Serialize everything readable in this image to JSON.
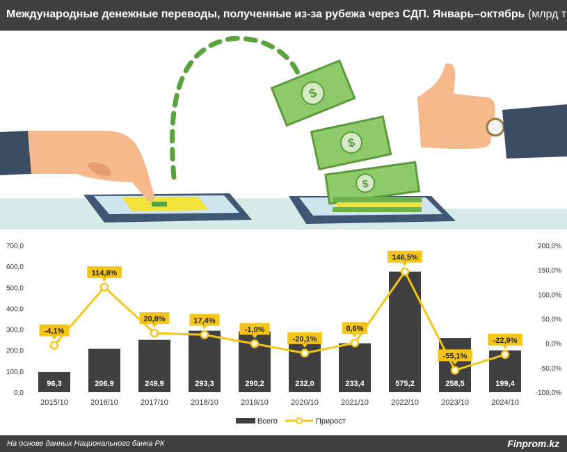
{
  "header": {
    "title": "Международные денежные переводы, полученные из-за рубежа через СДП. Январь–октябрь",
    "unit": "(млрд тг)"
  },
  "footer": {
    "source": "На основе данных Национального банка РК",
    "brand": "Finprom.kz"
  },
  "colors": {
    "bar": "#404040",
    "line": "#f5c518",
    "bar_label": "#ffffff",
    "callout_bg": "#f5c518"
  },
  "illustration": {
    "icons": [
      "pointing-hand-icon",
      "smartphone-icon",
      "money-bills-icon",
      "thumbs-up-hand-icon",
      "dashed-arc-arrow-icon"
    ]
  },
  "chart_data": {
    "type": "bar",
    "categories": [
      "2015/10",
      "2016/10",
      "2017/10",
      "2018/10",
      "2019/10",
      "2020/10",
      "2021/10",
      "2022/10",
      "2023/10",
      "2024/10"
    ],
    "series": [
      {
        "name": "Всего",
        "type": "bar",
        "axis": "left",
        "values": [
          96.3,
          206.9,
          249.9,
          293.3,
          290.2,
          232.0,
          233.4,
          575.2,
          258.5,
          199.4
        ],
        "labels": [
          "96,3",
          "206,9",
          "249,9",
          "293,3",
          "290,2",
          "232,0",
          "233,4",
          "575,2",
          "258,5",
          "199,4"
        ]
      },
      {
        "name": "Прирост",
        "type": "line",
        "axis": "right",
        "values": [
          -4.1,
          114.8,
          20.8,
          17.4,
          -1.0,
          -20.1,
          0.6,
          146.5,
          -55.1,
          -22.9
        ],
        "labels": [
          "-4,1%",
          "114,8%",
          "20,8%",
          "17,4%",
          "-1,0%",
          "-20,1%",
          "0,6%",
          "146,5%",
          "-55,1%",
          "-22,9%"
        ]
      }
    ],
    "y_left": {
      "ylim": [
        0,
        700
      ],
      "ticks": [
        "0,0",
        "100,0",
        "200,0",
        "300,0",
        "400,0",
        "500,0",
        "600,0",
        "700,0"
      ]
    },
    "y_right": {
      "ylim": [
        -100,
        200
      ],
      "ticks": [
        "-100,0%",
        "-50,0%",
        "0,0%",
        "50,0%",
        "100,0%",
        "150,0%",
        "200,0%"
      ]
    },
    "grid": false,
    "legend": "bottom-center"
  }
}
